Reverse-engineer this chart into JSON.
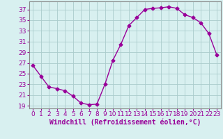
{
  "x": [
    0,
    1,
    2,
    3,
    4,
    5,
    6,
    7,
    8,
    9,
    10,
    11,
    12,
    13,
    14,
    15,
    16,
    17,
    18,
    19,
    20,
    21,
    22,
    23
  ],
  "y": [
    26.5,
    24.5,
    22.5,
    22.2,
    21.8,
    20.8,
    19.5,
    19.2,
    19.3,
    23.0,
    27.5,
    30.5,
    34.0,
    35.5,
    37.0,
    37.2,
    37.3,
    37.5,
    37.2,
    36.0,
    35.5,
    34.5,
    32.5,
    28.5
  ],
  "line_color": "#990099",
  "marker": "D",
  "markersize": 2.5,
  "linewidth": 1.0,
  "bg_color": "#d8f0f0",
  "grid_color": "#aacccc",
  "xlabel": "Windchill (Refroidissement éolien,°C)",
  "xlabel_color": "#990099",
  "xlabel_fontsize": 7,
  "yticks": [
    19,
    21,
    23,
    25,
    27,
    29,
    31,
    33,
    35,
    37
  ],
  "xtick_labels": [
    "0",
    "1",
    "2",
    "3",
    "4",
    "5",
    "6",
    "7",
    "8",
    "9",
    "10",
    "11",
    "12",
    "13",
    "14",
    "15",
    "16",
    "17",
    "18",
    "19",
    "20",
    "21",
    "22",
    "23"
  ],
  "ylim": [
    18.5,
    38.5
  ],
  "xlim": [
    -0.5,
    23.5
  ],
  "tick_color": "#990099",
  "tick_fontsize": 6.5,
  "spine_color": "#888888"
}
